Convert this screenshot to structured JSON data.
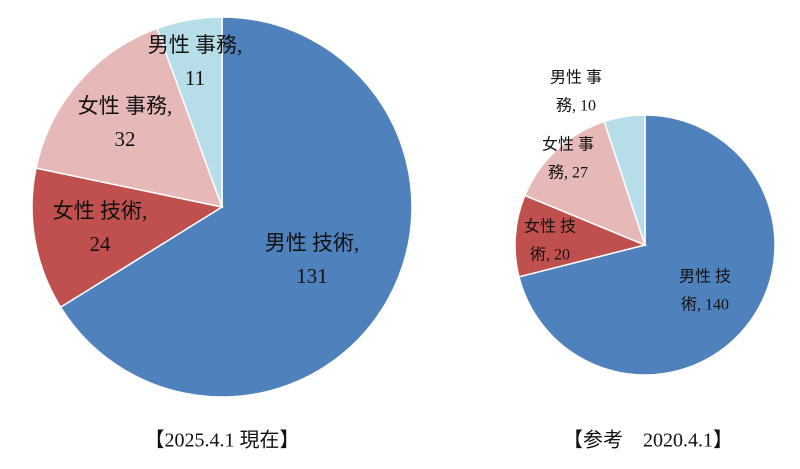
{
  "chart_data": [
    {
      "type": "pie",
      "title": "【2025.4.1 現在】",
      "categories": [
        "男性 技術,",
        "女性 技術,",
        "女性 事務,",
        "男性 事務,"
      ],
      "values": [
        131,
        24,
        32,
        11
      ],
      "colors": [
        "#4f81bd",
        "#c0504d",
        "#e6b9b8",
        "#b7dde8"
      ]
    },
    {
      "type": "pie",
      "title": "【参考　2020.4.1】",
      "categories": [
        "男性 技",
        "女性 技",
        "女性 事",
        "男性 事"
      ],
      "values": [
        140,
        20,
        27,
        10
      ],
      "value_labels": [
        "術, 140",
        "術, 20",
        "務, 27",
        "務, 10"
      ],
      "colors": [
        "#4f81bd",
        "#c0504d",
        "#e6b9b8",
        "#b7dde8"
      ]
    }
  ]
}
